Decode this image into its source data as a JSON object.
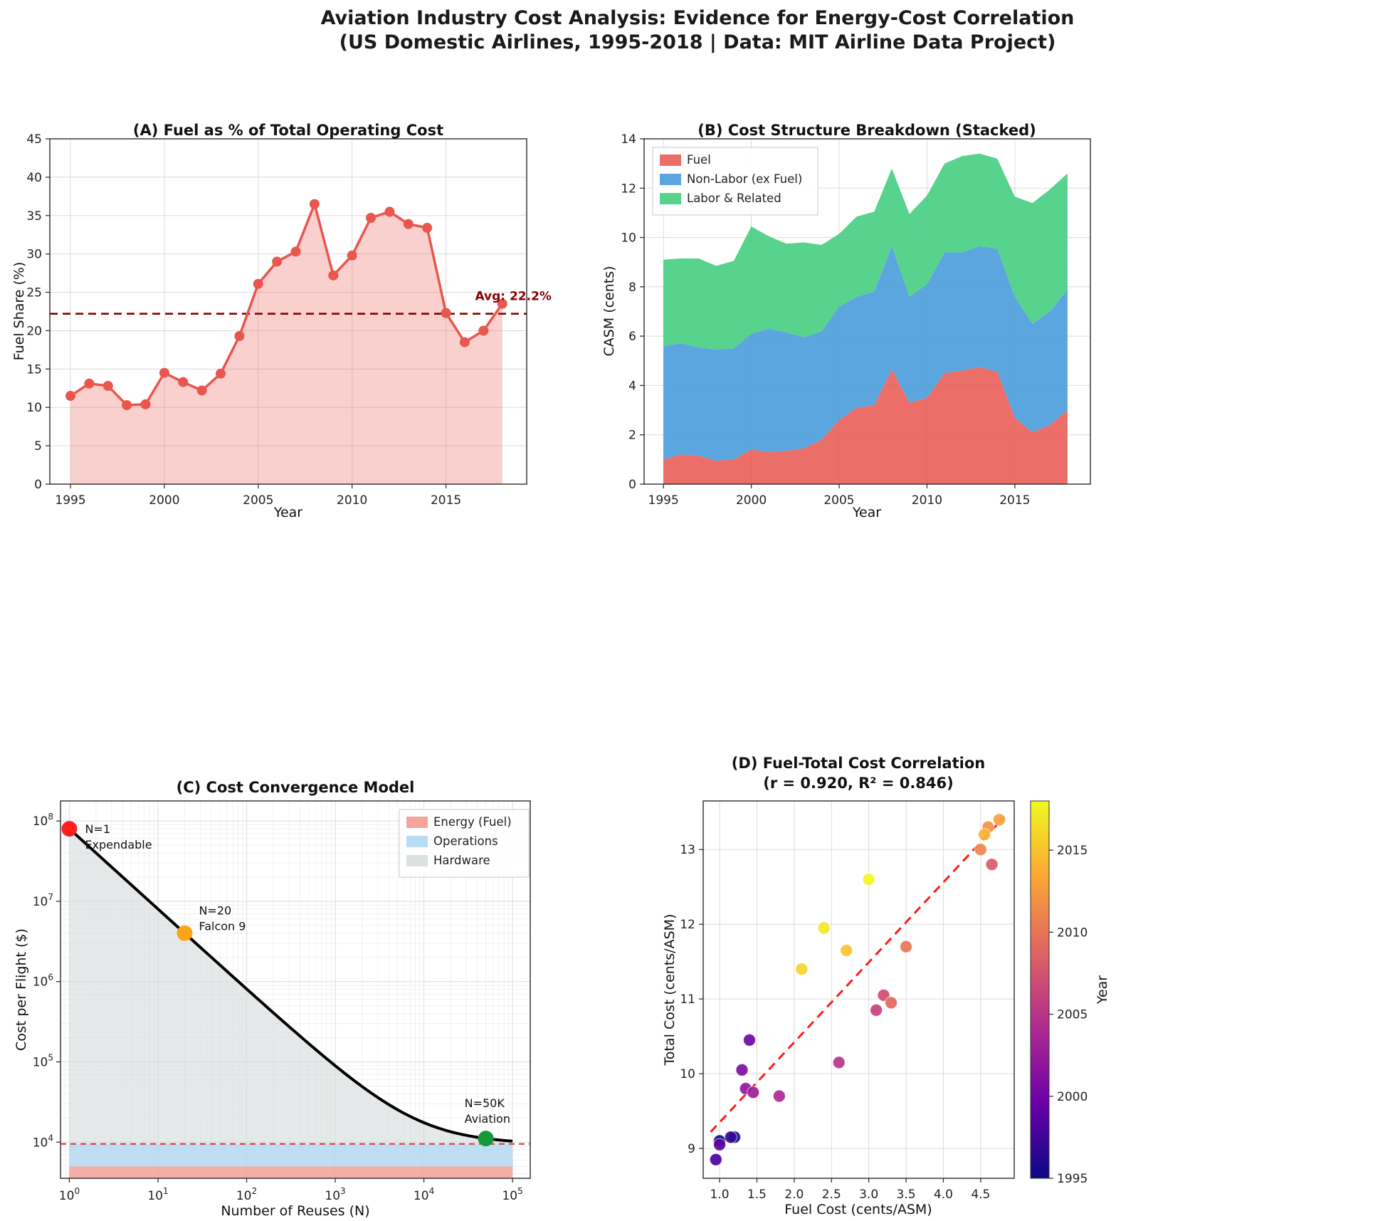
{
  "figure": {
    "title_line1": "Aviation Industry Cost Analysis: Evidence for Energy-Cost Correlation",
    "title_line2": "(US Domestic Airlines, 1995-2018 | Data: MIT Airline Data Project)"
  },
  "chart_data": [
    {
      "panel": "A",
      "type": "line",
      "title": "(A) Fuel as % of Total Operating Cost",
      "xlabel": "Year",
      "ylabel": "Fuel Share (%)",
      "xlim": [
        1993.9,
        2019.3
      ],
      "ylim": [
        0,
        45
      ],
      "xticks": [
        1995,
        2000,
        2005,
        2010,
        2015
      ],
      "yticks": [
        0,
        5,
        10,
        15,
        20,
        25,
        30,
        35,
        40,
        45
      ],
      "line_color": "#e8564e",
      "fill_opacity": 0.28,
      "x": [
        1995,
        1996,
        1997,
        1998,
        1999,
        2000,
        2001,
        2002,
        2003,
        2004,
        2005,
        2006,
        2007,
        2008,
        2009,
        2010,
        2011,
        2012,
        2013,
        2014,
        2015,
        2016,
        2017,
        2018
      ],
      "y": [
        11.5,
        13.1,
        12.8,
        10.3,
        10.4,
        14.5,
        13.3,
        12.2,
        14.4,
        19.3,
        26.1,
        29.0,
        30.3,
        36.5,
        27.2,
        29.8,
        34.7,
        35.5,
        33.9,
        33.4,
        22.3,
        18.5,
        20.0,
        23.5
      ],
      "avg": {
        "value": 22.2,
        "label": "Avg: 22.2%",
        "color": "#8b0000",
        "label_pos": [
          2016.55,
          24.0
        ]
      }
    },
    {
      "panel": "B",
      "type": "area",
      "title": "(B) Cost Structure Breakdown (Stacked)",
      "xlabel": "Year",
      "ylabel": "CASM (cents)",
      "xlim": [
        1993.9,
        2019.3
      ],
      "ylim": [
        0,
        14
      ],
      "xticks": [
        1995,
        2000,
        2005,
        2010,
        2015
      ],
      "yticks": [
        0,
        2,
        4,
        6,
        8,
        10,
        12,
        14
      ],
      "legend_position": "top-left",
      "x": [
        1995,
        1996,
        1997,
        1998,
        1999,
        2000,
        2001,
        2002,
        2003,
        2004,
        2005,
        2006,
        2007,
        2008,
        2009,
        2010,
        2011,
        2012,
        2013,
        2014,
        2015,
        2016,
        2017,
        2018
      ],
      "series": [
        {
          "name": "Fuel",
          "color": "#e8564e",
          "values": [
            1.0,
            1.2,
            1.15,
            0.95,
            1.0,
            1.4,
            1.3,
            1.35,
            1.45,
            1.8,
            2.6,
            3.1,
            3.2,
            4.65,
            3.3,
            3.5,
            4.5,
            4.6,
            4.75,
            4.55,
            2.7,
            2.1,
            2.4,
            3.0
          ]
        },
        {
          "name": "Non-Labor (ex Fuel)",
          "color": "#3f97d9",
          "values": [
            4.6,
            4.5,
            4.4,
            4.5,
            4.5,
            4.7,
            5.0,
            4.8,
            4.5,
            4.4,
            4.6,
            4.5,
            4.6,
            5.0,
            4.3,
            4.6,
            4.9,
            4.8,
            4.9,
            5.0,
            4.9,
            4.4,
            4.6,
            4.9
          ]
        },
        {
          "name": "Labor & Related",
          "color": "#3bcb7a",
          "values": [
            3.5,
            3.45,
            3.6,
            3.4,
            3.55,
            4.35,
            3.75,
            3.6,
            3.85,
            3.5,
            2.95,
            3.25,
            3.25,
            3.15,
            3.35,
            3.6,
            3.6,
            3.9,
            3.75,
            3.65,
            4.05,
            4.9,
            4.95,
            4.7
          ]
        }
      ]
    },
    {
      "panel": "C",
      "type": "line",
      "title": "(C) Cost Convergence Model",
      "xlabel": "Number of Reuses (N)",
      "ylabel": "Cost per Flight ($)",
      "xlim_exp": [
        -0.1,
        5.2
      ],
      "ylim_exp": [
        3.55,
        8.25
      ],
      "xticks_exp": [
        0,
        1,
        2,
        3,
        4,
        5
      ],
      "yticks_exp": [
        4,
        5,
        6,
        7,
        8
      ],
      "model": {
        "hardware_cost": 80000000,
        "energy_top": 5000,
        "floor": 9500
      },
      "asymptote_color": "#e03131",
      "bands": [
        {
          "name": "Energy (Fuel)",
          "color": "#f1948a"
        },
        {
          "name": "Operations",
          "color": "#aed6f1"
        },
        {
          "name": "Hardware",
          "color": "#d5dbdb"
        }
      ],
      "markers": [
        {
          "n": 1,
          "cost": 80000000,
          "color": "#ff1f1f",
          "label1": "N=1",
          "label2": "Expendable",
          "label_offset": [
            22,
            6
          ]
        },
        {
          "n": 20,
          "cost": 4010000,
          "color": "#ffa319",
          "label1": "N=20",
          "label2": "Falcon 9",
          "label_offset": [
            20,
            -26
          ]
        },
        {
          "n": 50000,
          "cost": 11100,
          "color": "#149a3a",
          "label1": "N=50K",
          "label2": "Aviation",
          "label_offset": [
            -30,
            -44
          ]
        }
      ]
    },
    {
      "panel": "D",
      "type": "scatter",
      "title_line1": "(D) Fuel-Total Cost Correlation",
      "title_line2": "(r = 0.920, R² = 0.846)",
      "xlabel": "Fuel Cost (cents/ASM)",
      "ylabel": "Total Cost (cents/ASM)",
      "xlim": [
        0.78,
        4.95
      ],
      "ylim": [
        8.6,
        13.65
      ],
      "xticks": [
        1.0,
        1.5,
        2.0,
        2.5,
        3.0,
        3.5,
        4.0,
        4.5
      ],
      "yticks": [
        9,
        10,
        11,
        12,
        13
      ],
      "points": [
        {
          "year": 1995,
          "x": 1.0,
          "y": 9.1
        },
        {
          "year": 1996,
          "x": 1.2,
          "y": 9.15
        },
        {
          "year": 1997,
          "x": 1.15,
          "y": 9.15
        },
        {
          "year": 1998,
          "x": 0.95,
          "y": 8.85
        },
        {
          "year": 1999,
          "x": 1.0,
          "y": 9.05
        },
        {
          "year": 2000,
          "x": 1.4,
          "y": 10.45
        },
        {
          "year": 2001,
          "x": 1.3,
          "y": 10.05
        },
        {
          "year": 2002,
          "x": 1.35,
          "y": 9.8
        },
        {
          "year": 2003,
          "x": 1.45,
          "y": 9.75
        },
        {
          "year": 2004,
          "x": 1.8,
          "y": 9.7
        },
        {
          "year": 2005,
          "x": 2.6,
          "y": 10.15
        },
        {
          "year": 2006,
          "x": 3.1,
          "y": 10.85
        },
        {
          "year": 2007,
          "x": 3.2,
          "y": 11.05
        },
        {
          "year": 2008,
          "x": 4.65,
          "y": 12.8
        },
        {
          "year": 2009,
          "x": 3.3,
          "y": 10.95
        },
        {
          "year": 2010,
          "x": 3.5,
          "y": 11.7
        },
        {
          "year": 2011,
          "x": 4.5,
          "y": 13.0
        },
        {
          "year": 2012,
          "x": 4.6,
          "y": 13.3
        },
        {
          "year": 2013,
          "x": 4.75,
          "y": 13.4
        },
        {
          "year": 2014,
          "x": 4.55,
          "y": 13.2
        },
        {
          "year": 2015,
          "x": 2.7,
          "y": 11.65
        },
        {
          "year": 2016,
          "x": 2.1,
          "y": 11.4
        },
        {
          "year": 2017,
          "x": 2.4,
          "y": 11.95
        },
        {
          "year": 2018,
          "x": 3.0,
          "y": 12.6
        }
      ],
      "fit": {
        "x1": 0.88,
        "y1": 9.22,
        "x2": 4.82,
        "y2": 13.44,
        "color": "#ff1a1a"
      },
      "colorbar": {
        "label": "Year",
        "min": 1995,
        "max": 2018,
        "ticks": [
          1995,
          2000,
          2005,
          2010,
          2015
        ],
        "stops": [
          "#0d0887",
          "#6a00a8",
          "#b12a90",
          "#e16462",
          "#fca636",
          "#f0f921"
        ]
      }
    }
  ]
}
